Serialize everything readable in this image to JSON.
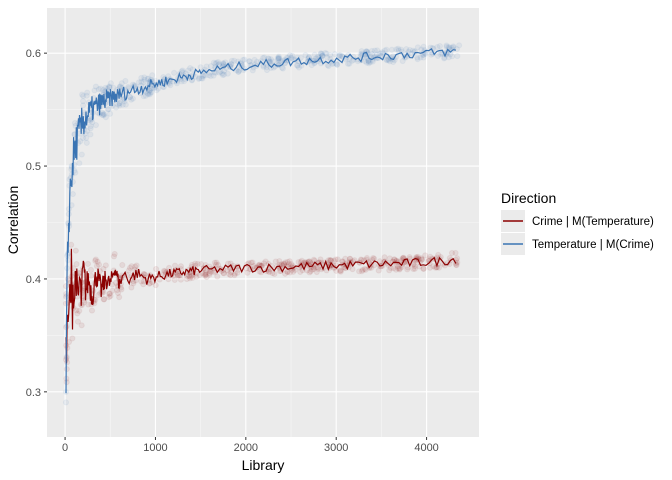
{
  "chart_data": {
    "type": "line",
    "xlabel": "Library",
    "ylabel": "Correlation",
    "xlim": [
      -200,
      4580
    ],
    "ylim": [
      0.26,
      0.64
    ],
    "x_ticks": [
      0,
      1000,
      2000,
      3000,
      4000
    ],
    "y_ticks": [
      0.3,
      0.4,
      0.5,
      0.6
    ],
    "x_tick_labels": [
      "0",
      "1000",
      "2000",
      "3000",
      "4000"
    ],
    "y_tick_labels": [
      "0.3",
      "0.4",
      "0.5",
      "0.6"
    ],
    "grid": true,
    "legend": {
      "title": "Direction",
      "position": "right"
    },
    "colors": {
      "panel_bg": "#ebebeb",
      "grid_major": "#ffffff",
      "crime_series": "#8b0000",
      "temperature_series": "#3a74b3"
    },
    "series": [
      {
        "name": "Crime | M(Temperature)",
        "color": "#8b0000",
        "points": [
          [
            10,
            0.36
          ],
          [
            20,
            0.34
          ],
          [
            30,
            0.38
          ],
          [
            40,
            0.35
          ],
          [
            50,
            0.39
          ],
          [
            60,
            0.37
          ],
          [
            70,
            0.41
          ],
          [
            80,
            0.37
          ],
          [
            90,
            0.4
          ],
          [
            100,
            0.38
          ],
          [
            120,
            0.41
          ],
          [
            140,
            0.375
          ],
          [
            160,
            0.4
          ],
          [
            180,
            0.38
          ],
          [
            200,
            0.41
          ],
          [
            230,
            0.39
          ],
          [
            260,
            0.4
          ],
          [
            300,
            0.385
          ],
          [
            350,
            0.405
          ],
          [
            400,
            0.39
          ],
          [
            450,
            0.4
          ],
          [
            500,
            0.395
          ],
          [
            550,
            0.41
          ],
          [
            600,
            0.395
          ],
          [
            650,
            0.405
          ],
          [
            700,
            0.4
          ],
          [
            800,
            0.405
          ],
          [
            900,
            0.4
          ],
          [
            1000,
            0.402
          ],
          [
            1200,
            0.405
          ],
          [
            1400,
            0.407
          ],
          [
            1600,
            0.408
          ],
          [
            1800,
            0.409
          ],
          [
            2000,
            0.41
          ],
          [
            2300,
            0.41
          ],
          [
            2600,
            0.411
          ],
          [
            3000,
            0.412
          ],
          [
            3400,
            0.413
          ],
          [
            3800,
            0.414
          ],
          [
            4200,
            0.416
          ],
          [
            4350,
            0.418
          ]
        ]
      },
      {
        "name": "Temperature | M(Crime)",
        "color": "#3a74b3",
        "points": [
          [
            10,
            0.29
          ],
          [
            20,
            0.38
          ],
          [
            30,
            0.42
          ],
          [
            40,
            0.45
          ],
          [
            50,
            0.47
          ],
          [
            60,
            0.48
          ],
          [
            70,
            0.49
          ],
          [
            80,
            0.5
          ],
          [
            90,
            0.505
          ],
          [
            100,
            0.51
          ],
          [
            120,
            0.52
          ],
          [
            140,
            0.525
          ],
          [
            160,
            0.53
          ],
          [
            180,
            0.535
          ],
          [
            200,
            0.54
          ],
          [
            250,
            0.545
          ],
          [
            300,
            0.55
          ],
          [
            350,
            0.553
          ],
          [
            400,
            0.556
          ],
          [
            500,
            0.56
          ],
          [
            600,
            0.563
          ],
          [
            700,
            0.566
          ],
          [
            800,
            0.568
          ],
          [
            900,
            0.571
          ],
          [
            1000,
            0.573
          ],
          [
            1200,
            0.577
          ],
          [
            1400,
            0.581
          ],
          [
            1600,
            0.585
          ],
          [
            1800,
            0.587
          ],
          [
            2000,
            0.589
          ],
          [
            2300,
            0.591
          ],
          [
            2600,
            0.593
          ],
          [
            3000,
            0.595
          ],
          [
            3400,
            0.597
          ],
          [
            3800,
            0.599
          ],
          [
            4200,
            0.601
          ],
          [
            4350,
            0.601
          ]
        ]
      }
    ]
  }
}
